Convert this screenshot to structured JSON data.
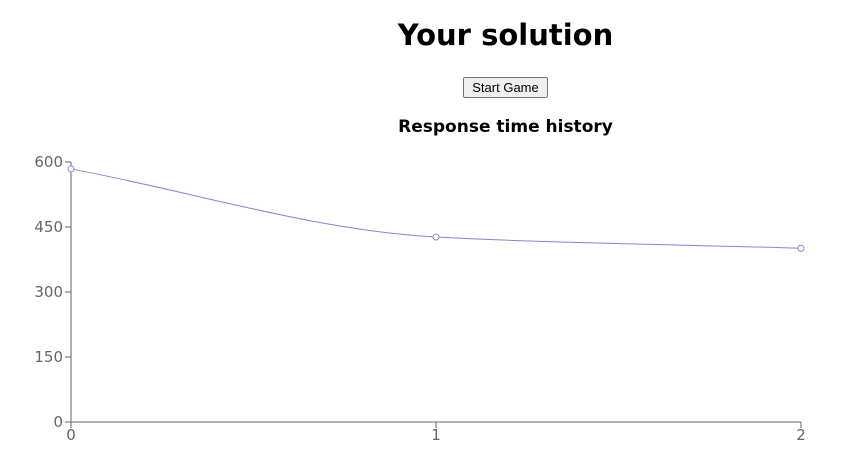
{
  "page": {
    "title": "Your solution",
    "start_button_label": "Start Game"
  },
  "colors": {
    "series": "#8884d8",
    "axis": "#666666",
    "background": "#ffffff"
  },
  "chart_data": {
    "type": "line",
    "title": "Response time history",
    "xlabel": "",
    "ylabel": "",
    "x": [
      0,
      1,
      2
    ],
    "series": [
      {
        "values": [
          584,
          427,
          401
        ]
      }
    ],
    "xlim": [
      0,
      2
    ],
    "ylim": [
      0,
      600
    ],
    "y_ticks": [
      0,
      150,
      300,
      450,
      600
    ],
    "x_ticks": [
      0,
      1,
      2
    ],
    "grid": false,
    "legend": "none",
    "curve": "smooth"
  }
}
